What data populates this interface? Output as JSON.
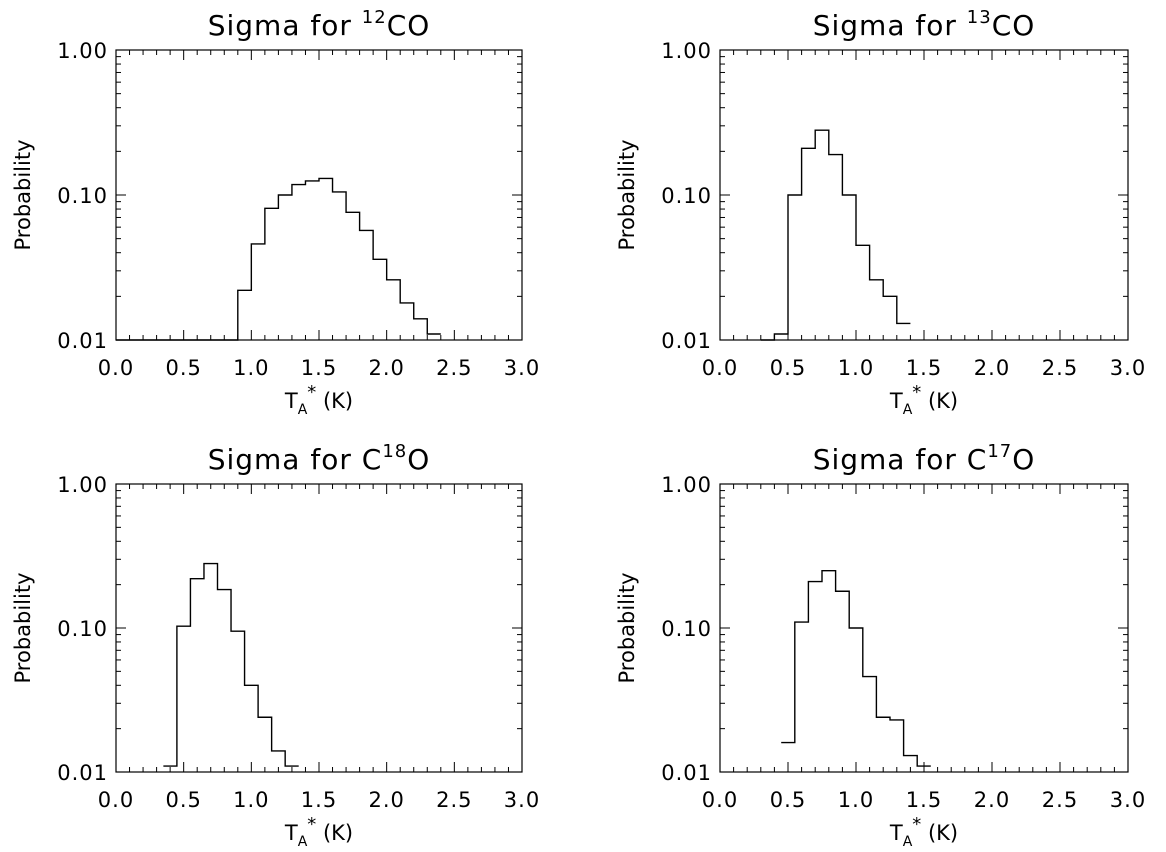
{
  "chart_data": [
    {
      "type": "histogram",
      "title": {
        "prefix": "Sigma for ",
        "sup": "12",
        "suffix": "CO"
      },
      "xlabel": "T_A* (K)",
      "ylabel": "Probability",
      "xlim": [
        0.0,
        3.0
      ],
      "ylim": [
        0.01,
        1.0
      ],
      "yscale": "log",
      "xticks": [
        "0.0",
        "0.5",
        "1.0",
        "1.5",
        "2.0",
        "2.5",
        "3.0"
      ],
      "yticks": [
        "0.01",
        "0.10",
        "1.00"
      ],
      "bin_width": 0.1,
      "bin_starts": [
        0.0,
        0.1,
        0.2,
        0.3,
        0.4,
        0.5,
        0.6,
        0.7,
        0.8,
        0.9,
        1.0,
        1.1,
        1.2,
        1.3,
        1.4,
        1.5,
        1.6,
        1.7,
        1.8,
        1.9,
        2.0,
        2.1,
        2.2,
        2.3
      ],
      "values": [
        0.01,
        0.01,
        0.01,
        0.01,
        0.01,
        0.01,
        0.01,
        0.01,
        0.01,
        0.022,
        0.046,
        0.081,
        0.1,
        0.118,
        0.125,
        0.13,
        0.105,
        0.076,
        0.057,
        0.036,
        0.026,
        0.018,
        0.014,
        0.011
      ]
    },
    {
      "type": "histogram",
      "title": {
        "prefix": "Sigma for ",
        "sup": "13",
        "suffix": "CO"
      },
      "xlabel": "T_A* (K)",
      "ylabel": "Probability",
      "xlim": [
        0.0,
        3.0
      ],
      "ylim": [
        0.01,
        1.0
      ],
      "yscale": "log",
      "xticks": [
        "0.0",
        "0.5",
        "1.0",
        "1.5",
        "2.0",
        "2.5",
        "3.0"
      ],
      "yticks": [
        "0.01",
        "0.10",
        "1.00"
      ],
      "bin_width": 0.1,
      "bin_starts": [
        0.3,
        0.4,
        0.5,
        0.6,
        0.7,
        0.8,
        0.9,
        1.0,
        1.1,
        1.2,
        1.3
      ],
      "values": [
        0.01,
        0.011,
        0.1,
        0.21,
        0.28,
        0.19,
        0.1,
        0.045,
        0.026,
        0.02,
        0.013
      ]
    },
    {
      "type": "histogram",
      "title": {
        "prefix": "Sigma for C",
        "sup": "18",
        "suffix": "O"
      },
      "xlabel": "T_A* (K)",
      "ylabel": "Probability",
      "xlim": [
        0.0,
        3.0
      ],
      "ylim": [
        0.01,
        1.0
      ],
      "yscale": "log",
      "xticks": [
        "0.0",
        "0.5",
        "1.0",
        "1.5",
        "2.0",
        "2.5",
        "3.0"
      ],
      "yticks": [
        "0.01",
        "0.10",
        "1.00"
      ],
      "bin_width": 0.1,
      "bin_starts": [
        0.35,
        0.45,
        0.55,
        0.65,
        0.75,
        0.85,
        0.95,
        1.05,
        1.15,
        1.25
      ],
      "values": [
        0.011,
        0.103,
        0.22,
        0.28,
        0.185,
        0.095,
        0.04,
        0.024,
        0.014,
        0.011
      ]
    },
    {
      "type": "histogram",
      "title": {
        "prefix": "Sigma for C",
        "sup": "17",
        "suffix": "O"
      },
      "xlabel": "T_A* (K)",
      "ylabel": "Probability",
      "xlim": [
        0.0,
        3.0
      ],
      "ylim": [
        0.01,
        1.0
      ],
      "yscale": "log",
      "xticks": [
        "0.0",
        "0.5",
        "1.0",
        "1.5",
        "2.0",
        "2.5",
        "3.0"
      ],
      "yticks": [
        "0.01",
        "0.10",
        "1.00"
      ],
      "bin_width": 0.1,
      "bin_starts": [
        0.45,
        0.55,
        0.65,
        0.75,
        0.85,
        0.95,
        1.05,
        1.15,
        1.25,
        1.35,
        1.45
      ],
      "values": [
        0.016,
        0.11,
        0.21,
        0.25,
        0.18,
        0.1,
        0.046,
        0.024,
        0.023,
        0.013,
        0.011
      ]
    }
  ]
}
